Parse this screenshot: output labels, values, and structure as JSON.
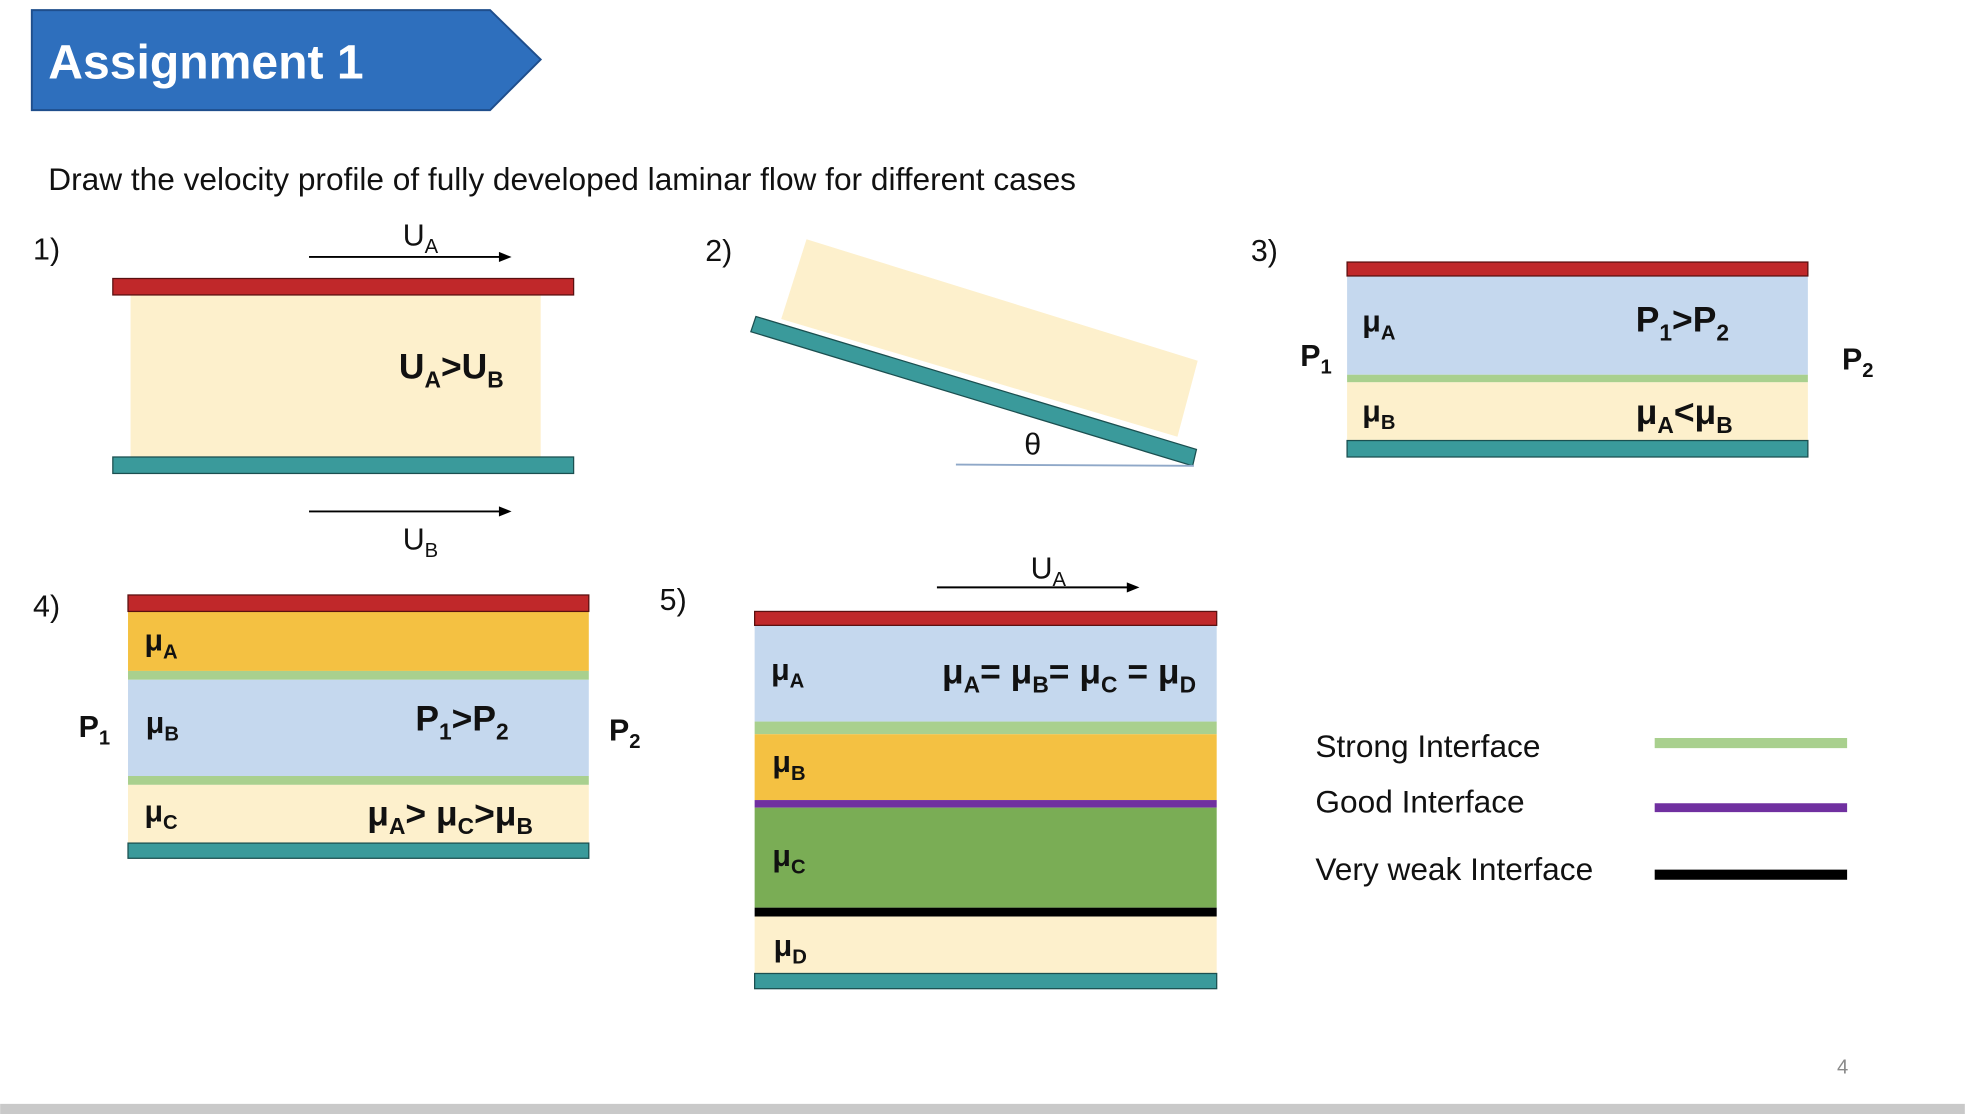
{
  "header": {
    "title": "Assignment 1"
  },
  "instruction": "Draw the velocity profile of fully developed laminar flow for different cases",
  "cases": [
    {
      "number": "1)",
      "top_velocity": [
        "U",
        "A"
      ],
      "condition": [
        "U",
        "A",
        ">U",
        "B"
      ],
      "bottom_velocity": [
        "U",
        "B"
      ]
    },
    {
      "number": "2)",
      "angle": "θ"
    },
    {
      "number": "3)",
      "left_pressure": [
        "P",
        "1"
      ],
      "right_pressure": [
        "P",
        "2"
      ],
      "layers": [
        [
          "μ",
          "A"
        ],
        [
          "μ",
          "B"
        ]
      ],
      "conditions": [
        [
          "P",
          "1",
          ">P",
          "2"
        ],
        [
          "μ",
          "A",
          "<μ",
          "B"
        ]
      ]
    },
    {
      "number": "4)",
      "left_pressure": [
        "P",
        "1"
      ],
      "right_pressure": [
        "P",
        "2"
      ],
      "layers": [
        [
          "μ",
          "A"
        ],
        [
          "μ",
          "B"
        ],
        [
          "μ",
          "C"
        ]
      ],
      "conditions": [
        [
          "P",
          "1",
          ">P",
          "2"
        ],
        [
          "μ",
          "A",
          "> μ",
          "C",
          ">μ",
          "B"
        ]
      ]
    },
    {
      "number": "5)",
      "top_velocity": [
        "U",
        "A"
      ],
      "layers": [
        [
          "μ",
          "A"
        ],
        [
          "μ",
          "B"
        ],
        [
          "μ",
          "C"
        ],
        [
          "μ",
          "D"
        ]
      ],
      "condition": [
        "μ",
        "A",
        "= μ",
        "B",
        "= μ",
        "C",
        " = μ",
        "D"
      ]
    }
  ],
  "legend": [
    {
      "label": "Strong Interface"
    },
    {
      "label": "Good Interface"
    },
    {
      "label": "Very weak Interface"
    }
  ],
  "page_number": "4"
}
